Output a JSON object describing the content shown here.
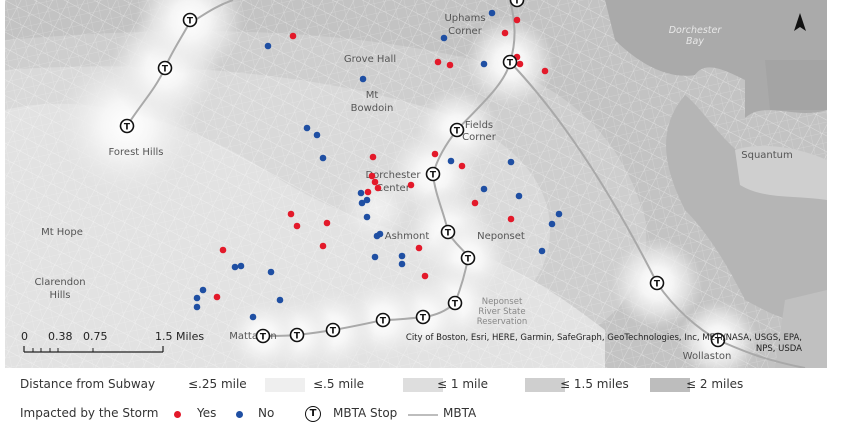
{
  "map": {
    "place_labels": [
      {
        "name": "Uphams Corner",
        "lines": [
          "Uphams",
          "Corner"
        ]
      },
      {
        "name": "Grove Hall",
        "lines": [
          "Grove Hall"
        ]
      },
      {
        "name": "Mt Bowdoin",
        "lines": [
          "Mt",
          "Bowdoin"
        ]
      },
      {
        "name": "Forest Hills",
        "lines": [
          "Forest Hills"
        ]
      },
      {
        "name": "Fields Corner",
        "lines": [
          "Fields",
          "Corner"
        ]
      },
      {
        "name": "Dorchester Center",
        "lines": [
          "Dorchester",
          "Center"
        ]
      },
      {
        "name": "Squantum",
        "lines": [
          "Squantum"
        ]
      },
      {
        "name": "Mt Hope",
        "lines": [
          "Mt Hope"
        ]
      },
      {
        "name": "Ashmont",
        "lines": [
          "Ashmont"
        ]
      },
      {
        "name": "Neponset",
        "lines": [
          "Neponset"
        ]
      },
      {
        "name": "Clarendon Hills",
        "lines": [
          "Clarendon",
          "Hills"
        ]
      },
      {
        "name": "Neponset River State Reservation",
        "lines": [
          "Neponset",
          "River State",
          "Reservation"
        ]
      },
      {
        "name": "Mattapan",
        "lines": [
          "Mattapan"
        ]
      },
      {
        "name": "Wollaston",
        "lines": [
          "Wollaston"
        ]
      },
      {
        "name": "Dorchester Bay",
        "lines": [
          "Dorchester",
          "Bay"
        ]
      }
    ],
    "attribution": [
      "City of Boston, Esri, HERE, Garmin, SafeGraph, GeoTechnologies, Inc, METI/NASA, USGS, EPA,",
      "NPS, USDA"
    ],
    "scale_bar": {
      "ticks": [
        "0",
        "0.38",
        "0.75",
        "1.5 Miles"
      ]
    },
    "north_arrow": "north-arrow",
    "mbta_symbol": "T"
  },
  "legend": {
    "distance_title": "Distance from Subway",
    "distance_bands": [
      {
        "label": "≤.25 mile",
        "color": "#ffffff"
      },
      {
        "label": "≤.5 mile",
        "color": "#efefef"
      },
      {
        "label": "≤ 1 mile",
        "color": "#dedede"
      },
      {
        "label": "≤ 1.5 miles",
        "color": "#cfcfcf"
      },
      {
        "label": "≤ 2 miles",
        "color": "#bdbdbd"
      }
    ],
    "impact_title": "Impacted by the Storm",
    "yes_label": "Yes",
    "no_label": "No",
    "stop_label": "MBTA Stop",
    "line_label": "MBTA",
    "yes_color": "#e3192a",
    "no_color": "#1f4fa3"
  }
}
